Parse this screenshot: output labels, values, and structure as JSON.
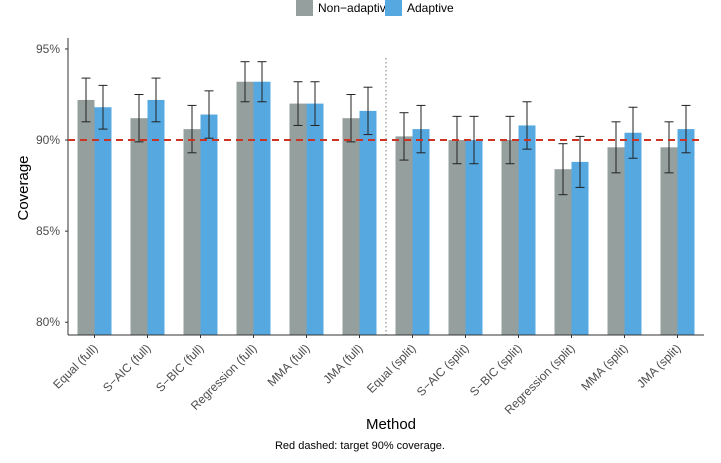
{
  "chart_data": {
    "type": "bar",
    "title": "",
    "xlabel": "Method",
    "ylabel": "Coverage",
    "caption": "Red dashed: target 90% coverage.",
    "ylim": [
      79.3,
      95.6
    ],
    "yticks": [
      80,
      85,
      90,
      95
    ],
    "ytick_labels": [
      "80%",
      "85%",
      "90%",
      "95%"
    ],
    "categories": [
      "Equal (full)",
      "S−AIC (full)",
      "S−BIC (full)",
      "Regression (full)",
      "MMA (full)",
      "JMA (full)",
      "Equal (split)",
      "S−AIC (split)",
      "S−BIC (split)",
      "Regression (split)",
      "MMA (split)",
      "JMA (split)"
    ],
    "series": [
      {
        "name": "Non−adaptive",
        "color": "#95a09e",
        "values": [
          92.2,
          91.2,
          90.6,
          93.2,
          92.0,
          91.2,
          90.2,
          90.0,
          90.0,
          88.4,
          89.6,
          89.6
        ],
        "err_low": [
          91.0,
          89.9,
          89.3,
          92.1,
          90.8,
          89.9,
          88.9,
          88.7,
          88.7,
          87.0,
          88.2,
          88.2
        ],
        "err_high": [
          93.4,
          92.5,
          91.9,
          94.3,
          93.2,
          92.5,
          91.5,
          91.3,
          91.3,
          89.8,
          91.0,
          91.0
        ]
      },
      {
        "name": "Adaptive",
        "color": "#56a8e0",
        "values": [
          91.8,
          92.2,
          91.4,
          93.2,
          92.0,
          91.6,
          90.6,
          90.0,
          90.8,
          88.8,
          90.4,
          90.6
        ],
        "err_low": [
          90.6,
          91.0,
          90.1,
          92.1,
          90.8,
          90.3,
          89.3,
          88.7,
          89.5,
          87.4,
          89.0,
          89.3
        ],
        "err_high": [
          93.0,
          93.4,
          92.7,
          94.3,
          93.2,
          92.9,
          91.9,
          91.3,
          92.1,
          90.2,
          91.8,
          91.9
        ]
      }
    ],
    "reference_line": {
      "value": 90,
      "color": "#cc3322",
      "style": "dashed"
    },
    "divider_after_category_index": 5,
    "legend_position": "top",
    "grid": false
  }
}
